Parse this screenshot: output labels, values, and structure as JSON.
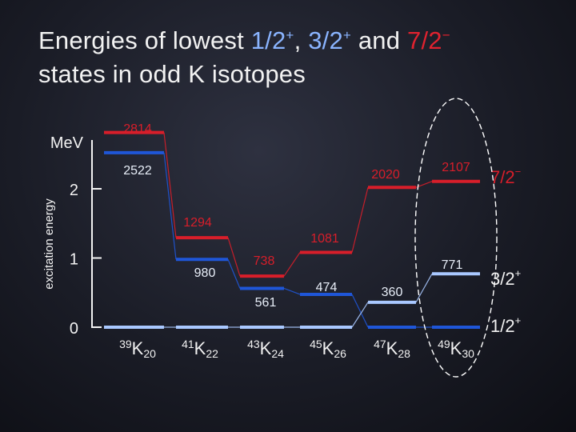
{
  "title": {
    "part1": "Energies of lowest ",
    "half": "1/2",
    "half_sup": "+",
    "sep": ", ",
    "three": "3/2",
    "three_sup": "+",
    "and": " and ",
    "seven": "7/2",
    "seven_sup": "−",
    "line2": "states in odd K isotopes"
  },
  "colors": {
    "half": "#1f56d8",
    "three": "#a9c8ff",
    "seven": "#d81e2a",
    "axis": "#f2f2f2",
    "highlight": "#ffffff"
  },
  "chart_data": {
    "type": "level-scheme",
    "ylabel": "excitation energy",
    "yunit": "MeV",
    "ylim": [
      0,
      3
    ],
    "yticks": [
      0,
      1,
      2
    ],
    "ytick_labels": [
      "0",
      "1",
      "2"
    ],
    "isotopes": [
      {
        "mass": "39",
        "symbol": "K",
        "n": "20"
      },
      {
        "mass": "41",
        "symbol": "K",
        "n": "22"
      },
      {
        "mass": "43",
        "symbol": "K",
        "n": "24"
      },
      {
        "mass": "45",
        "symbol": "K",
        "n": "26"
      },
      {
        "mass": "47",
        "symbol": "K",
        "n": "28"
      },
      {
        "mass": "49",
        "symbol": "K",
        "n": "30"
      }
    ],
    "series": [
      {
        "name": "1/2",
        "sup": "+",
        "key": "half",
        "energies_keV": [
          2522,
          980,
          561,
          474,
          0,
          0
        ],
        "labels": [
          "2522",
          "980",
          "561",
          "474",
          "",
          ""
        ]
      },
      {
        "name": "3/2",
        "sup": "+",
        "key": "three",
        "energies_keV": [
          0,
          0,
          0,
          0,
          360,
          771
        ],
        "labels": [
          "",
          "",
          "",
          "",
          "360",
          "771"
        ]
      },
      {
        "name": "7/2",
        "sup": "−",
        "key": "seven",
        "energies_keV": [
          2814,
          1294,
          738,
          1081,
          2020,
          2107
        ],
        "labels": [
          "2814",
          "1294",
          "738",
          "1081",
          "2020",
          "2107"
        ]
      }
    ],
    "highlighted_isotope": "49K"
  }
}
